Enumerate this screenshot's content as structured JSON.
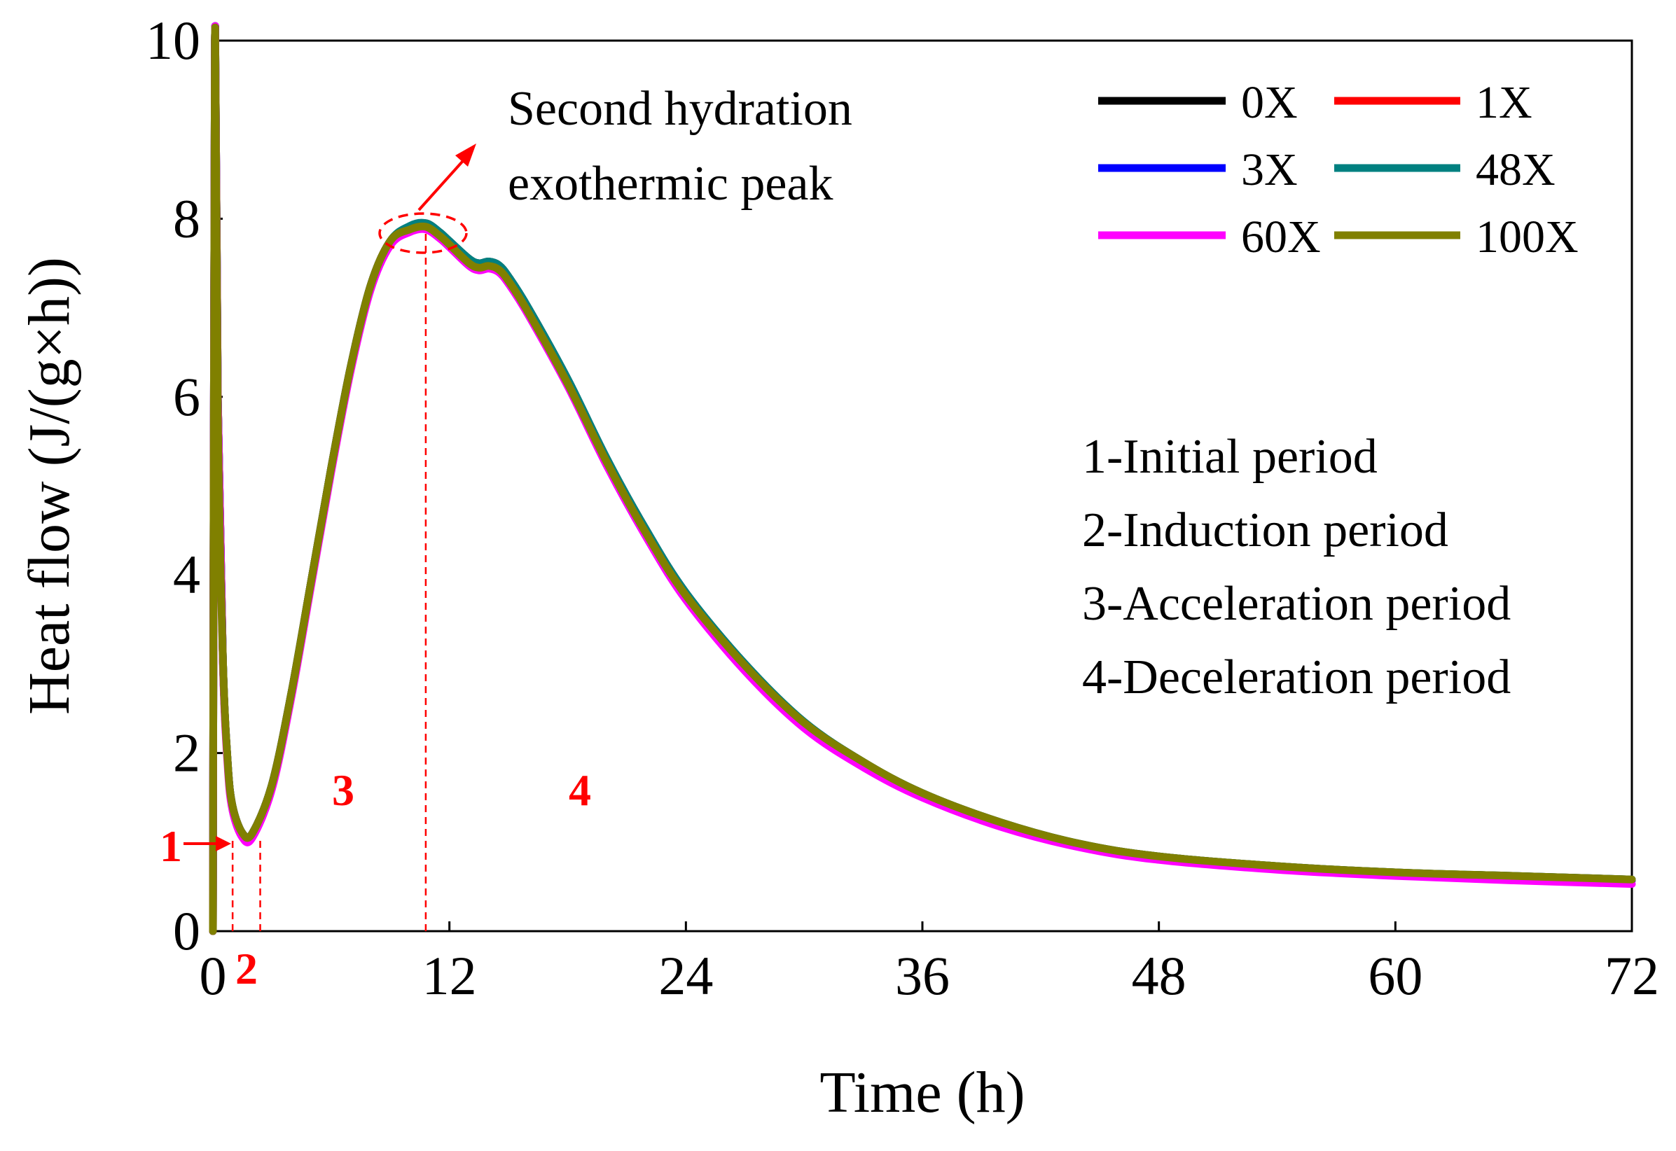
{
  "chart_data": {
    "type": "line",
    "title": "",
    "xlabel": "Time (h)",
    "ylabel": "Heat flow (J/(g×h))",
    "xlim": [
      0,
      72
    ],
    "ylim": [
      0,
      10
    ],
    "xticks": [
      0,
      12,
      24,
      36,
      48,
      60,
      72
    ],
    "yticks": [
      0,
      2,
      4,
      6,
      8,
      10
    ],
    "xtick_labels": [
      "0",
      "12",
      "24",
      "36",
      "48",
      "60",
      "72"
    ],
    "ytick_labels": [
      "0",
      "2",
      "4",
      "6",
      "8",
      "10"
    ],
    "grid": false,
    "legend_position": "top-right",
    "x": [
      0,
      0.1,
      0.25,
      0.5,
      0.75,
      1.0,
      1.5,
      2.0,
      3.0,
      4.0,
      5.0,
      6.0,
      7.0,
      8.0,
      9.0,
      10.0,
      10.8,
      11.5,
      12.0,
      13.0,
      13.5,
      14.0,
      14.5,
      15.0,
      16.0,
      18.0,
      20.0,
      22.0,
      24.0,
      27.0,
      30.0,
      33.0,
      36.0,
      40.0,
      44.0,
      48.0,
      54.0,
      60.0,
      66.0,
      72.0
    ],
    "series": [
      {
        "name": "0X",
        "color": "#000000",
        "values": [
          0,
          10,
          6.0,
          3.1,
          1.9,
          1.4,
          1.1,
          1.1,
          1.65,
          2.7,
          3.95,
          5.2,
          6.35,
          7.25,
          7.75,
          7.9,
          7.95,
          7.85,
          7.75,
          7.55,
          7.5,
          7.52,
          7.48,
          7.35,
          7.0,
          6.2,
          5.3,
          4.5,
          3.8,
          3.0,
          2.35,
          1.9,
          1.55,
          1.22,
          0.98,
          0.84,
          0.73,
          0.66,
          0.62,
          0.58
        ]
      },
      {
        "name": "1X",
        "color": "#ff0000",
        "values": [
          0,
          10,
          6.0,
          3.1,
          1.9,
          1.4,
          1.1,
          1.1,
          1.65,
          2.7,
          3.95,
          5.2,
          6.35,
          7.25,
          7.75,
          7.9,
          7.94,
          7.84,
          7.74,
          7.53,
          7.48,
          7.5,
          7.46,
          7.33,
          6.98,
          6.18,
          5.28,
          4.48,
          3.78,
          2.98,
          2.33,
          1.88,
          1.53,
          1.2,
          0.97,
          0.83,
          0.72,
          0.65,
          0.61,
          0.57
        ]
      },
      {
        "name": "3X",
        "color": "#0000ff",
        "values": [
          0,
          10,
          6.0,
          3.1,
          1.9,
          1.4,
          1.1,
          1.1,
          1.65,
          2.7,
          3.95,
          5.2,
          6.35,
          7.25,
          7.75,
          7.9,
          7.94,
          7.84,
          7.74,
          7.53,
          7.48,
          7.5,
          7.46,
          7.33,
          6.98,
          6.18,
          5.28,
          4.48,
          3.78,
          2.98,
          2.33,
          1.88,
          1.53,
          1.2,
          0.97,
          0.83,
          0.72,
          0.65,
          0.61,
          0.57
        ]
      },
      {
        "name": "48X",
        "color": "#008080",
        "values": [
          0,
          10,
          6.0,
          3.1,
          1.9,
          1.4,
          1.1,
          1.1,
          1.65,
          2.7,
          3.95,
          5.2,
          6.35,
          7.25,
          7.75,
          7.92,
          7.95,
          7.85,
          7.75,
          7.55,
          7.5,
          7.52,
          7.48,
          7.35,
          7.0,
          6.2,
          5.3,
          4.5,
          3.8,
          3.0,
          2.35,
          1.9,
          1.55,
          1.22,
          0.98,
          0.84,
          0.73,
          0.66,
          0.62,
          0.58
        ]
      },
      {
        "name": "60X",
        "color": "#ff00ff",
        "values": [
          0,
          10,
          6.0,
          3.05,
          1.85,
          1.35,
          1.05,
          1.05,
          1.6,
          2.65,
          3.9,
          5.15,
          6.3,
          7.2,
          7.7,
          7.85,
          7.88,
          7.78,
          7.68,
          7.47,
          7.42,
          7.44,
          7.4,
          7.27,
          6.92,
          6.12,
          5.22,
          4.42,
          3.72,
          2.92,
          2.28,
          1.84,
          1.5,
          1.17,
          0.94,
          0.8,
          0.69,
          0.62,
          0.57,
          0.53
        ]
      },
      {
        "name": "100X",
        "color": "#808000",
        "values": [
          0,
          10,
          5.8,
          3.1,
          1.9,
          1.4,
          1.1,
          1.1,
          1.65,
          2.7,
          3.95,
          5.2,
          6.35,
          7.25,
          7.75,
          7.88,
          7.91,
          7.81,
          7.71,
          7.5,
          7.45,
          7.47,
          7.43,
          7.3,
          6.95,
          6.15,
          5.26,
          4.46,
          3.77,
          2.98,
          2.34,
          1.9,
          1.55,
          1.22,
          0.98,
          0.84,
          0.73,
          0.66,
          0.62,
          0.58
        ]
      }
    ],
    "period_lines": [
      {
        "x": 1.0,
        "y_top": 1.05
      },
      {
        "x": 2.4,
        "y_top": 1.05
      },
      {
        "x": 10.8,
        "y_top": 7.95
      }
    ],
    "annotations": {
      "peak_label": [
        "Second hydration",
        "exothermic peak"
      ],
      "periods": [
        "1-Initial period",
        "2-Induction period",
        "3-Acceleration period",
        "4-Deceleration period"
      ],
      "region_labels": [
        "1",
        "2",
        "3",
        "4"
      ]
    }
  }
}
